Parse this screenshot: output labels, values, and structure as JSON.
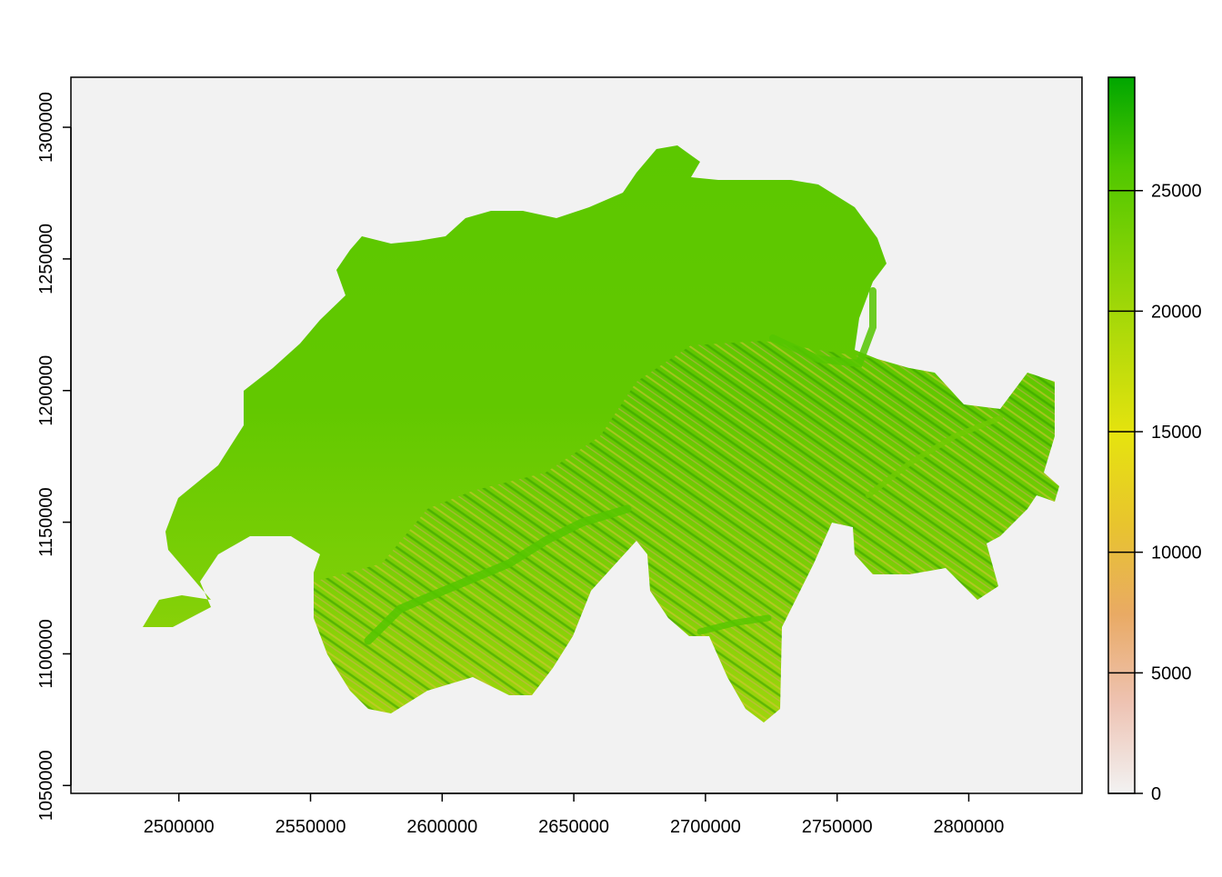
{
  "chart_data": {
    "type": "heatmap",
    "description_type": "raster map",
    "x_ticks": [
      2500000,
      2550000,
      2600000,
      2650000,
      2700000,
      2750000,
      2800000
    ],
    "x_tick_labels": [
      "2500000",
      "2550000",
      "2600000",
      "2650000",
      "2700000",
      "2750000",
      "2800000"
    ],
    "y_ticks": [
      1050000,
      1100000,
      1150000,
      1200000,
      1250000,
      1300000
    ],
    "y_tick_labels": [
      "1050000",
      "1100000",
      "1150000",
      "1200000",
      "1250000",
      "1300000"
    ],
    "xlim": [
      2459000,
      2843000
    ],
    "ylim": [
      1047000,
      1319000
    ],
    "legend": {
      "position": "right",
      "range": [
        0,
        29700
      ],
      "ticks": [
        0,
        5000,
        10000,
        15000,
        20000,
        25000
      ],
      "tick_labels": [
        "0",
        "5000",
        "10000",
        "15000",
        "20000",
        "25000"
      ],
      "colors": [
        "#F2F2F2",
        "#EEC3B3",
        "#E9AA64",
        "#E8C42E",
        "#E6E30F",
        "#B6DB0A",
        "#83D205",
        "#4FC700",
        "#00A600"
      ]
    },
    "background_color": "#F2F2F2",
    "grid": false
  }
}
